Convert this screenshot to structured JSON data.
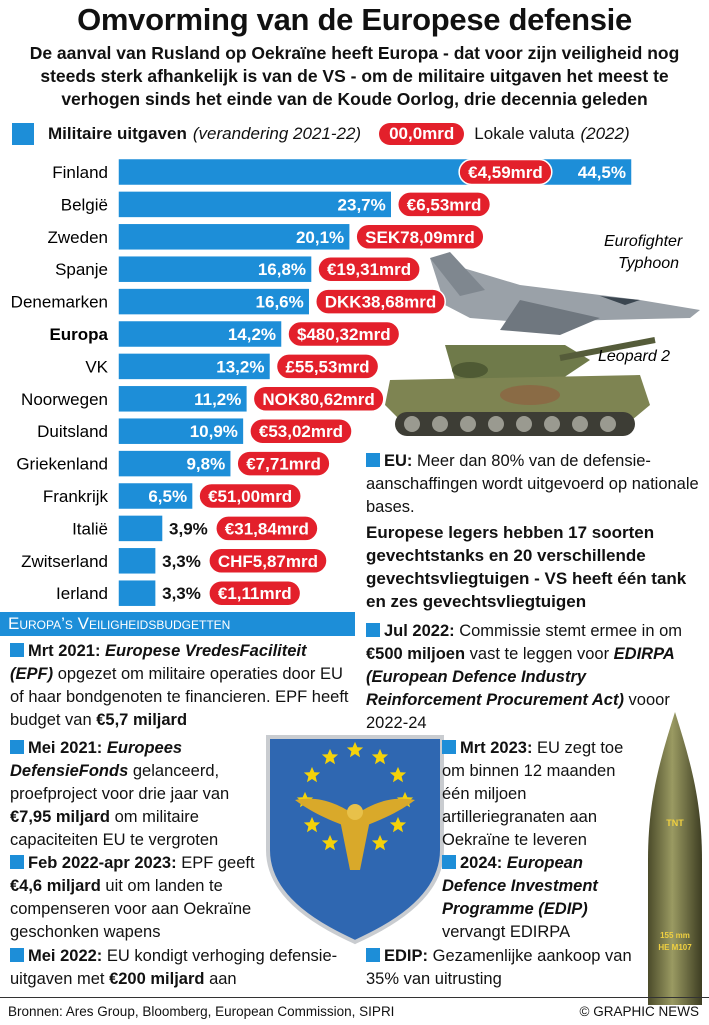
{
  "header": {
    "title": "Omvorming van de Europese defensie",
    "subtitle": "De aanval van Rusland op Oekraïne heeft Europa - dat voor zijn veiligheid nog steeds sterk afhankelijk is van de VS - om de militaire uitgaven het meest te verhogen sinds het einde van de Koude Oorlog, drie decennia geleden"
  },
  "chart_data": {
    "type": "bar",
    "orientation": "horizontal",
    "legend": {
      "label": "Militaire uitgaven",
      "note": "(verandering 2021-22)",
      "amount_sample": "00,0mrd",
      "amount_label": "Lokale valuta",
      "amount_note": "(2022)"
    },
    "categories": [
      "Finland",
      "België",
      "Zweden",
      "Spanje",
      "Denemarken",
      "Europa",
      "VK",
      "Noorwegen",
      "Duitsland",
      "Griekenland",
      "Frankrijk",
      "Italië",
      "Zwitserland",
      "Ierland"
    ],
    "values": [
      44.5,
      23.7,
      20.1,
      16.8,
      16.6,
      14.2,
      13.2,
      11.2,
      10.9,
      9.8,
      6.5,
      3.9,
      3.3,
      3.3
    ],
    "value_labels": [
      "44,5%",
      "23,7%",
      "20,1%",
      "16,8%",
      "16,6%",
      "14,2%",
      "13,2%",
      "11,2%",
      "10,9%",
      "9,8%",
      "6,5%",
      "3,9%",
      "3,3%",
      "3,3%"
    ],
    "amount_labels": [
      "€4,59mrd",
      "€6,53mrd",
      "SEK78,09mrd",
      "€19,31mrd",
      "DKK38,68mrd",
      "$480,32mrd",
      "£55,53mrd",
      "NOK80,62mrd",
      "€53,02mrd",
      "€7,71mrd",
      "€51,00mrd",
      "€31,84mrd",
      "CHF5,87mrd",
      "€1,11mrd"
    ],
    "color": "#1d8ed8",
    "amount_color": "#e3202b",
    "bold_categories": [
      5
    ]
  },
  "images": {
    "plane": [
      "Eurofighter",
      "Typhoon"
    ],
    "tank": "Leopard 2",
    "shell": [
      "TNT",
      "155 mm",
      "HE M107"
    ]
  },
  "eu_note": {
    "label": "EU:",
    "text": "Meer dan 80% van de defensie-aanschaffingen wordt uitgevoerd op nationale bases.",
    "conclusion": "Europese legers hebben 17 soorten gevechtstanks en 20 verschillende gevechtsvliegtuigen - VS heeft één tank en zes gevechtsvliegtuigen"
  },
  "budgets": {
    "title": "Europa’s Veiligheidsbudgetten",
    "items": [
      [
        "Mrt 2021:",
        "Europese VredesFaciliteit (EPF)",
        "opgezet om militaire operaties door EU of haar bondgenoten te financieren. EPF heeft budget van",
        "€5,7 miljard"
      ],
      [
        "Mei 2021:",
        "Europees DefensieFonds",
        "gelanceerd, proefproject voor drie jaar van",
        "€7,95 miljard",
        "om militaire capaciteiten EU te vergroten"
      ],
      [
        "Feb 2022-apr 2023:",
        "EPF geeft",
        "€4,6 miljard",
        "uit om landen te compenseren voor aan Oekraïne geschonken wapens"
      ],
      [
        "Mei 2022:",
        "EU kondigt verhoging defensie-uitgaven met",
        "€200 miljard",
        "aan"
      ],
      [
        "Jul 2022:",
        "Commissie stemt ermee in om",
        "€500 miljoen",
        "vast te leggen voor",
        "EDIRPA (European Defence Industry Reinforcement Procurement Act)",
        "vooor 2022-24"
      ],
      [
        "Mrt 2023:",
        "EU zegt toe om binnen 12 maanden één miljoen artilleriegranaten aan Oekraïne te leveren"
      ],
      [
        "2024:",
        "European Defence Investment Programme (EDIP)",
        "vervangt EDIRPA"
      ],
      [
        "EDIP:",
        "Gezamenlijke aankoop van 35% van uitrusting"
      ]
    ]
  },
  "footer": {
    "sources": "Bronnen: Ares Group, Bloomberg, European Commission, SIPRI",
    "credit": "© GRAPHIC NEWS"
  }
}
